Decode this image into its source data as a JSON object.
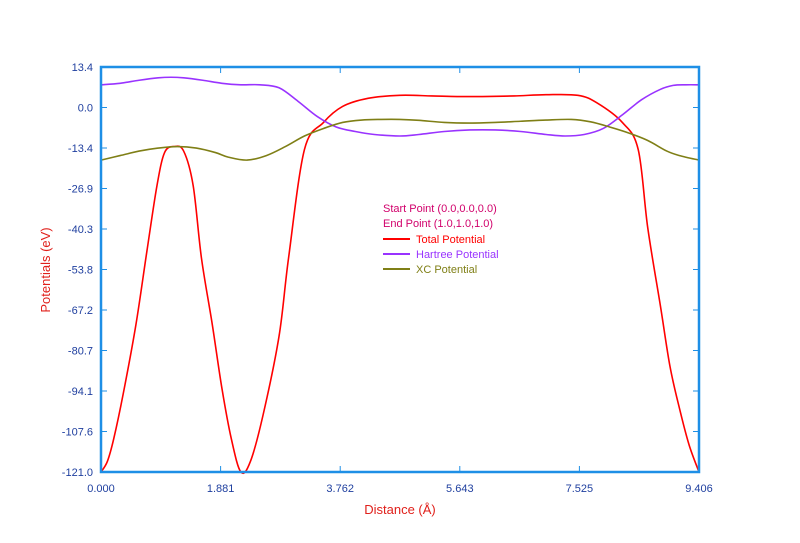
{
  "chart_data": {
    "type": "line",
    "xlabel": "Distance (Å)",
    "ylabel": "Potentials (eV)",
    "xlim": [
      0.0,
      9.406
    ],
    "ylim": [
      -121.0,
      13.4
    ],
    "x_ticks": [
      "0.000",
      "1.881",
      "3.762",
      "5.643",
      "7.525",
      "9.406"
    ],
    "y_ticks": [
      "13.4",
      "0.0",
      "-13.4",
      "-26.9",
      "-40.3",
      "-53.8",
      "-67.2",
      "-80.7",
      "-94.1",
      "-107.6",
      "-121.0"
    ],
    "annotations": {
      "start": "Start Point (0.0,0.0,0.0)",
      "end": "End Point (1.0,1.0,1.0)"
    },
    "legend_entries": [
      "Total Potential",
      "Hartree Potential",
      "XC Potential"
    ],
    "series": [
      {
        "name": "Total Potential",
        "color": "#ff0000",
        "x": [
          0.0,
          0.1,
          0.2,
          0.35,
          0.55,
          0.72,
          0.88,
          1.0,
          1.15,
          1.3,
          1.45,
          1.58,
          1.75,
          1.9,
          2.05,
          2.2,
          2.35,
          2.55,
          2.8,
          2.95,
          3.2,
          3.5,
          3.8,
          4.2,
          4.7,
          5.2,
          5.6,
          6.0,
          6.5,
          7.0,
          7.5,
          7.8,
          8.2,
          8.45,
          8.6,
          8.8,
          8.95,
          9.1,
          9.25,
          9.406
        ],
        "values": [
          -121.0,
          -117.5,
          -110.0,
          -95.0,
          -72.0,
          -48.0,
          -26.0,
          -15.0,
          -13.0,
          -14.5,
          -26.0,
          -50.0,
          -72.0,
          -93.0,
          -110.0,
          -121.0,
          -117.5,
          -102.0,
          -76.0,
          -50.0,
          -14.0,
          -5.0,
          0.3,
          3.0,
          4.0,
          3.8,
          3.6,
          3.6,
          3.8,
          4.2,
          4.0,
          1.5,
          -5.0,
          -14.0,
          -40.0,
          -66.0,
          -86.0,
          -100.0,
          -112.0,
          -121.0
        ]
      },
      {
        "name": "Hartree Potential",
        "color": "#9933ff",
        "x": [
          0.0,
          0.3,
          0.6,
          0.9,
          1.1,
          1.3,
          1.6,
          1.9,
          2.2,
          2.5,
          2.8,
          3.1,
          3.4,
          3.7,
          4.0,
          4.3,
          4.7,
          5.0,
          5.4,
          5.8,
          6.2,
          6.6,
          7.0,
          7.3,
          7.6,
          7.9,
          8.2,
          8.5,
          8.8,
          9.0,
          9.2,
          9.406
        ],
        "values": [
          7.5,
          8.0,
          9.0,
          9.8,
          10.0,
          9.8,
          9.0,
          8.0,
          7.5,
          7.5,
          6.5,
          2.0,
          -3.0,
          -6.5,
          -8.0,
          -9.0,
          -9.5,
          -9.0,
          -8.0,
          -7.5,
          -7.5,
          -8.0,
          -9.0,
          -9.5,
          -9.0,
          -7.0,
          -2.5,
          2.5,
          6.0,
          7.3,
          7.5,
          7.5
        ]
      },
      {
        "name": "XC Potential",
        "color": "#7f7f16",
        "x": [
          0.0,
          0.3,
          0.6,
          0.9,
          1.2,
          1.5,
          1.8,
          2.0,
          2.3,
          2.6,
          2.9,
          3.2,
          3.5,
          3.8,
          4.1,
          4.4,
          4.7,
          5.0,
          5.4,
          5.8,
          6.2,
          6.6,
          7.0,
          7.4,
          7.7,
          8.0,
          8.3,
          8.6,
          8.9,
          9.1,
          9.406
        ],
        "values": [
          -17.5,
          -16.0,
          -14.5,
          -13.5,
          -13.0,
          -13.5,
          -15.0,
          -16.5,
          -17.5,
          -16.0,
          -13.0,
          -9.5,
          -7.0,
          -5.0,
          -4.2,
          -4.0,
          -4.0,
          -4.3,
          -5.0,
          -5.2,
          -5.0,
          -4.6,
          -4.2,
          -4.0,
          -4.8,
          -6.5,
          -8.5,
          -11.0,
          -14.5,
          -16.0,
          -17.5
        ]
      }
    ]
  }
}
